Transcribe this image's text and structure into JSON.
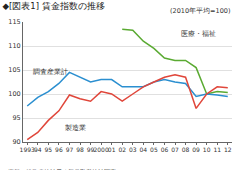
{
  "chart_data": {
    "type": "line",
    "title": "◆[図表1] 賃金指数の推移",
    "subtitle": "(2010年平均=100)",
    "annotations": [
      "資料：総務省統計局「毎月勤労統計調査」"
    ],
    "categories": [
      "1993",
      "94",
      "95",
      "96",
      "97",
      "98",
      "99",
      "2000",
      "01",
      "02",
      "03",
      "04",
      "05",
      "06",
      "07",
      "08",
      "09",
      "10",
      "11",
      "12"
    ],
    "series": [
      {
        "name": "医療・福祉",
        "color": "#5aaa32",
        "values": [
          null,
          null,
          null,
          null,
          null,
          null,
          null,
          null,
          null,
          113.5,
          113.3,
          111,
          109.5,
          107.5,
          107,
          107,
          105.5,
          100,
          100.5,
          100.3
        ]
      },
      {
        "name": "調査産業計",
        "color": "#2b8fd0",
        "values": [
          97.5,
          99.3,
          100.5,
          102.2,
          104.5,
          103.5,
          102.5,
          103,
          103,
          101.5,
          101.5,
          101.5,
          102.5,
          103,
          102.5,
          102.2,
          99.5,
          100,
          99.8,
          99.5
        ]
      },
      {
        "name": "製造業",
        "color": "#e0463a",
        "values": [
          90.5,
          92,
          94.5,
          96.5,
          99.8,
          99,
          98.5,
          100.5,
          100,
          98.5,
          100,
          101.5,
          102.5,
          103.5,
          104,
          103.5,
          97,
          100,
          101.5,
          101.3
        ]
      }
    ],
    "ylim": [
      90,
      115
    ],
    "yticks": [
      90,
      95,
      100,
      105,
      110,
      115
    ],
    "grid": true,
    "legend": false
  }
}
